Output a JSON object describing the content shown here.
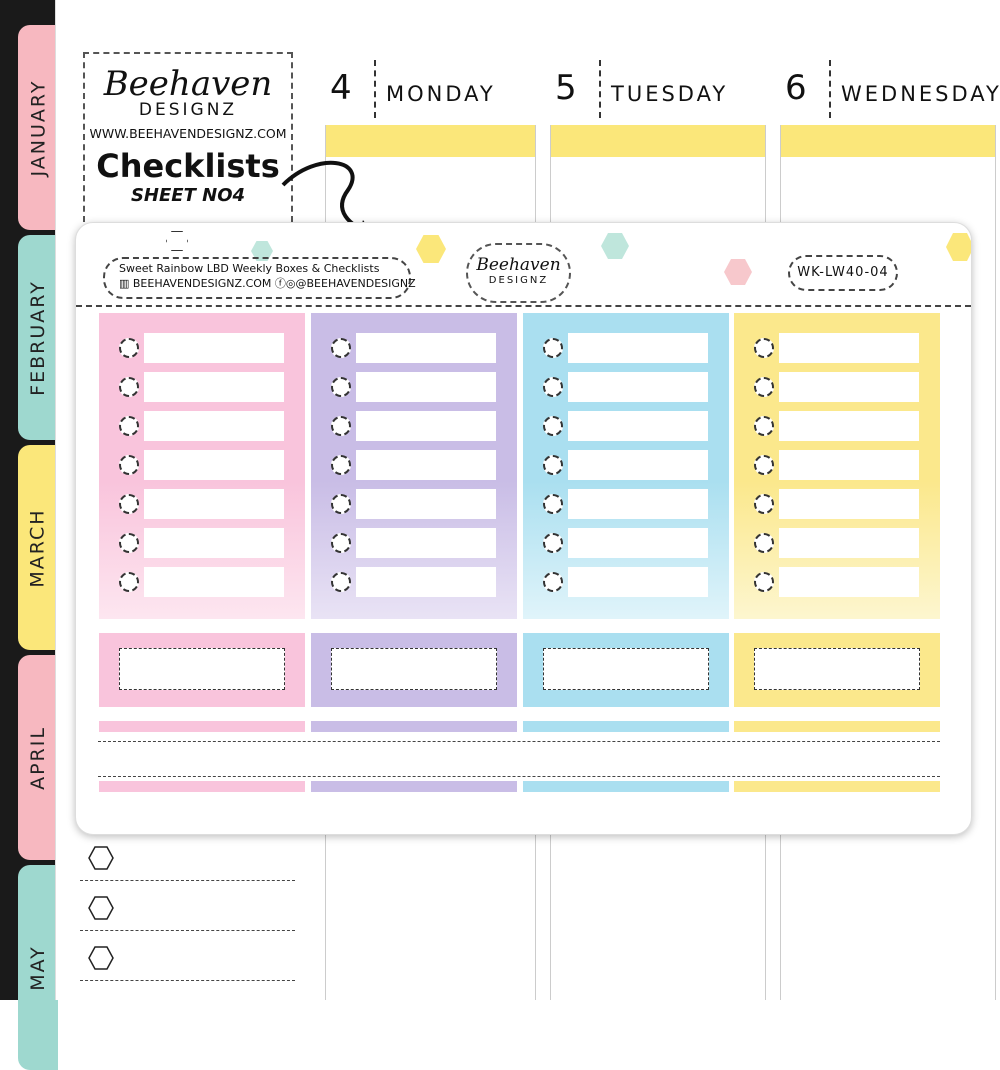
{
  "months": [
    {
      "label": "JANUARY",
      "color": "#f7b8c0"
    },
    {
      "label": "FEBRUARY",
      "color": "#9ed8cf"
    },
    {
      "label": "MARCH",
      "color": "#fbe77a"
    },
    {
      "label": "APRIL",
      "color": "#f7b8c0"
    },
    {
      "label": "MAY",
      "color": "#9ed8cf"
    }
  ],
  "days": [
    {
      "num": "4",
      "name": "MONDAY"
    },
    {
      "num": "5",
      "name": "TUESDAY"
    },
    {
      "num": "6",
      "name": "WEDNESDAY"
    }
  ],
  "logo": {
    "brand": "Beehaven",
    "brand2": "DESIGNZ",
    "url": "WWW.BEEHAVENDESIGNZ.COM",
    "title": "Checklists",
    "sheet": "SHEET NO4"
  },
  "sticker": {
    "name": "Sweet Rainbow LBD Weekly Boxes & Checklists",
    "site": "BEEHAVENDESIGNZ.COM",
    "social": "@BEEHAVENDESIGNZ",
    "brand": "Beehaven",
    "brand2": "DESIGNZ",
    "code": "WK-LW40-04"
  },
  "columns": [
    {
      "color": "#f9c4dc",
      "light": "#fde6f0"
    },
    {
      "color": "#c9bde6",
      "light": "#e9e3f5"
    },
    {
      "color": "#aadff0",
      "light": "#e0f4fa"
    },
    {
      "color": "#fbe88c",
      "light": "#fdf6cf"
    }
  ],
  "checklist_rows": 7
}
